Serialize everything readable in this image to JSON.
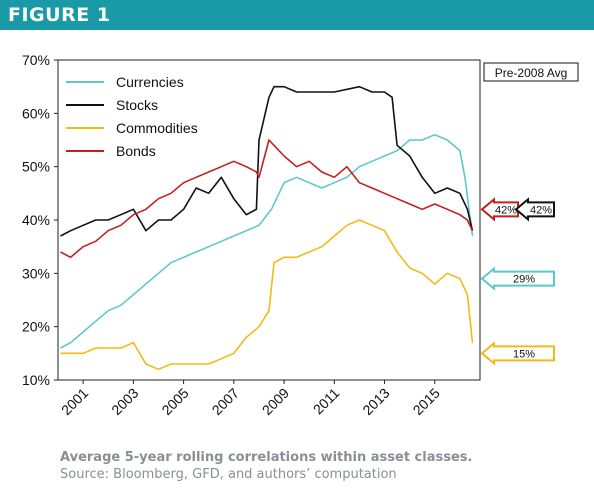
{
  "figure_label": "FIGURE 1",
  "caption": "Average 5-year rolling correlations within asset classes.",
  "source": "Source: Bloomberg, GFD, and authors’ computation",
  "chart_data": {
    "type": "line",
    "title": "",
    "xlabel": "",
    "ylabel": "",
    "xlim": [
      2000.0,
      2016.8
    ],
    "ylim": [
      0.1,
      0.7
    ],
    "x_ticks": [
      2001,
      2003,
      2005,
      2007,
      2009,
      2011,
      2013,
      2015
    ],
    "y_ticks": [
      0.1,
      0.2,
      0.3,
      0.4,
      0.5,
      0.6,
      0.7
    ],
    "y_tick_labels": [
      "10%",
      "20%",
      "30%",
      "40%",
      "50%",
      "60%",
      "70%"
    ],
    "legend_position": "top-left",
    "series": [
      {
        "name": "Currencies",
        "color": "#5ec8c8",
        "x": [
          2000.1,
          2000.5,
          2001.0,
          2001.5,
          2002.0,
          2002.5,
          2003.0,
          2003.5,
          2004.0,
          2004.5,
          2005.0,
          2005.5,
          2006.0,
          2006.5,
          2007.0,
          2007.5,
          2008.0,
          2008.5,
          2009.0,
          2009.5,
          2010.0,
          2010.5,
          2011.0,
          2011.5,
          2012.0,
          2012.5,
          2013.0,
          2013.5,
          2014.0,
          2014.5,
          2015.0,
          2015.5,
          2016.0,
          2016.2,
          2016.5
        ],
        "y": [
          0.16,
          0.17,
          0.19,
          0.21,
          0.23,
          0.24,
          0.26,
          0.28,
          0.3,
          0.32,
          0.33,
          0.34,
          0.35,
          0.36,
          0.37,
          0.38,
          0.39,
          0.42,
          0.47,
          0.48,
          0.47,
          0.46,
          0.47,
          0.48,
          0.5,
          0.51,
          0.52,
          0.53,
          0.55,
          0.55,
          0.56,
          0.55,
          0.53,
          0.48,
          0.37
        ]
      },
      {
        "name": "Stocks",
        "color": "#111111",
        "x": [
          2000.1,
          2000.5,
          2001.0,
          2001.5,
          2002.0,
          2002.5,
          2003.0,
          2003.5,
          2004.0,
          2004.5,
          2005.0,
          2005.5,
          2006.0,
          2006.5,
          2007.0,
          2007.5,
          2007.9,
          2008.0,
          2008.4,
          2008.6,
          2009.0,
          2009.5,
          2010.0,
          2011.0,
          2012.0,
          2012.5,
          2013.0,
          2013.3,
          2013.5,
          2014.0,
          2014.5,
          2015.0,
          2015.5,
          2016.0,
          2016.3,
          2016.5
        ],
        "y": [
          0.37,
          0.38,
          0.39,
          0.4,
          0.4,
          0.41,
          0.42,
          0.38,
          0.4,
          0.4,
          0.42,
          0.46,
          0.45,
          0.48,
          0.44,
          0.41,
          0.42,
          0.55,
          0.63,
          0.65,
          0.65,
          0.64,
          0.64,
          0.64,
          0.65,
          0.64,
          0.64,
          0.63,
          0.54,
          0.52,
          0.48,
          0.45,
          0.46,
          0.45,
          0.42,
          0.38
        ]
      },
      {
        "name": "Commodities",
        "color": "#f5b915",
        "x": [
          2000.1,
          2000.5,
          2001.0,
          2001.5,
          2002.0,
          2002.5,
          2003.0,
          2003.5,
          2004.0,
          2004.5,
          2005.0,
          2005.5,
          2006.0,
          2006.5,
          2007.0,
          2007.5,
          2008.0,
          2008.4,
          2008.6,
          2009.0,
          2009.5,
          2010.0,
          2010.5,
          2011.0,
          2011.5,
          2012.0,
          2012.5,
          2013.0,
          2013.5,
          2014.0,
          2014.5,
          2015.0,
          2015.5,
          2016.0,
          2016.3,
          2016.5
        ],
        "y": [
          0.15,
          0.15,
          0.15,
          0.16,
          0.16,
          0.16,
          0.17,
          0.13,
          0.12,
          0.13,
          0.13,
          0.13,
          0.13,
          0.14,
          0.15,
          0.18,
          0.2,
          0.23,
          0.32,
          0.33,
          0.33,
          0.34,
          0.35,
          0.37,
          0.39,
          0.4,
          0.39,
          0.38,
          0.34,
          0.31,
          0.3,
          0.28,
          0.3,
          0.29,
          0.26,
          0.17
        ]
      },
      {
        "name": "Bonds",
        "color": "#c41e1e",
        "x": [
          2000.1,
          2000.5,
          2001.0,
          2001.5,
          2002.0,
          2002.5,
          2003.0,
          2003.5,
          2004.0,
          2004.5,
          2005.0,
          2005.5,
          2006.0,
          2006.5,
          2007.0,
          2007.5,
          2007.9,
          2008.0,
          2008.4,
          2008.6,
          2009.0,
          2009.5,
          2010.0,
          2010.5,
          2011.0,
          2011.5,
          2012.0,
          2012.5,
          2013.0,
          2013.5,
          2014.0,
          2014.5,
          2015.0,
          2015.5,
          2016.0,
          2016.3,
          2016.5
        ],
        "y": [
          0.34,
          0.33,
          0.35,
          0.36,
          0.38,
          0.39,
          0.41,
          0.42,
          0.44,
          0.45,
          0.47,
          0.48,
          0.49,
          0.5,
          0.51,
          0.5,
          0.49,
          0.48,
          0.55,
          0.54,
          0.52,
          0.5,
          0.51,
          0.49,
          0.48,
          0.5,
          0.47,
          0.46,
          0.45,
          0.44,
          0.43,
          0.42,
          0.43,
          0.42,
          0.41,
          0.4,
          0.38
        ]
      }
    ],
    "annotations": {
      "header": "Pre-2008 Avg",
      "markers": [
        {
          "label": "42%",
          "value": 0.42,
          "color": "#c41e1e"
        },
        {
          "label": "42%",
          "value": 0.42,
          "color": "#111111"
        },
        {
          "label": "29%",
          "value": 0.29,
          "color": "#5ec8c8"
        },
        {
          "label": "15%",
          "value": 0.15,
          "color": "#f5b915"
        }
      ]
    }
  }
}
